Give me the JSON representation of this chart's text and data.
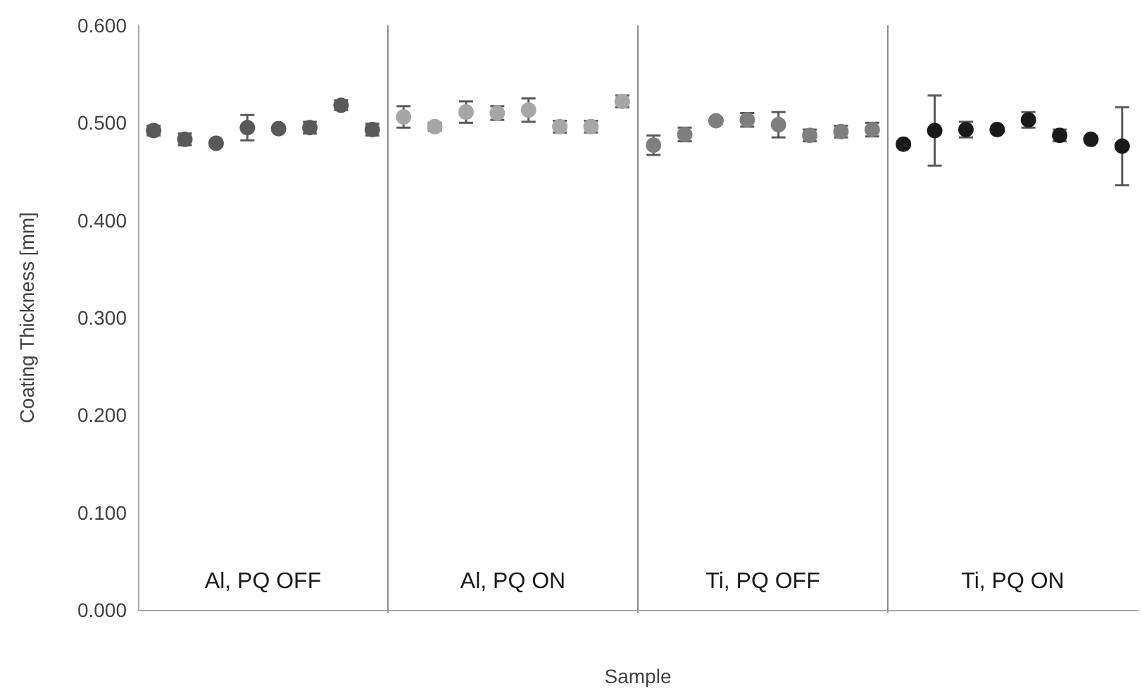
{
  "chart_data": {
    "type": "scatter",
    "xlabel": "Sample",
    "ylabel": "Coating Thickness [mm]",
    "categories": [
      null,
      null,
      null,
      null,
      null,
      null,
      null,
      null,
      null,
      null,
      null,
      null,
      null,
      null,
      null,
      null,
      null,
      null,
      null,
      null,
      null,
      null,
      null,
      null,
      null,
      null,
      null,
      null,
      null,
      null,
      null,
      null
    ],
    "series": [
      {
        "color": "#595959",
        "values": [
          0.492,
          0.483,
          0.479,
          0.495,
          0.494,
          0.495,
          0.518,
          0.493,
          null,
          null,
          null,
          null,
          null,
          null,
          null,
          null,
          null,
          null,
          null,
          null,
          null,
          null,
          null,
          null,
          null,
          null,
          null,
          null,
          null,
          null,
          null,
          null
        ],
        "errors": [
          0.005,
          0.006,
          0.003,
          0.013,
          0.002,
          0.006,
          0.005,
          0.006,
          null,
          null,
          null,
          null,
          null,
          null,
          null,
          null,
          null,
          null,
          null,
          null,
          null,
          null,
          null,
          null,
          null,
          null,
          null,
          null,
          null,
          null,
          null,
          null
        ]
      },
      {
        "color": "#a6a6a6",
        "values": [
          null,
          null,
          null,
          null,
          null,
          null,
          null,
          null,
          0.506,
          0.496,
          0.511,
          0.51,
          0.513,
          0.496,
          0.496,
          0.522,
          null,
          null,
          null,
          null,
          null,
          null,
          null,
          null,
          null,
          null,
          null,
          null,
          null,
          null,
          null,
          null
        ],
        "errors": [
          null,
          null,
          null,
          null,
          null,
          null,
          null,
          null,
          0.011,
          0.004,
          0.011,
          0.007,
          0.012,
          0.006,
          0.006,
          0.006,
          null,
          null,
          null,
          null,
          null,
          null,
          null,
          null,
          null,
          null,
          null,
          null,
          null,
          null,
          null,
          null
        ]
      },
      {
        "color": "#7f7f7f",
        "values": [
          null,
          null,
          null,
          null,
          null,
          null,
          null,
          null,
          null,
          null,
          null,
          null,
          null,
          null,
          null,
          null,
          0.477,
          0.488,
          0.502,
          0.503,
          0.498,
          0.487,
          0.491,
          0.493,
          null,
          null,
          null,
          null,
          null,
          null,
          null,
          null
        ],
        "errors": [
          null,
          null,
          null,
          null,
          null,
          null,
          null,
          null,
          null,
          null,
          null,
          null,
          null,
          null,
          null,
          null,
          0.01,
          0.007,
          0.003,
          0.007,
          0.013,
          0.006,
          0.006,
          0.007,
          null,
          null,
          null,
          null,
          null,
          null,
          null,
          null
        ]
      },
      {
        "color": "#1a1a1a",
        "values": [
          null,
          null,
          null,
          null,
          null,
          null,
          null,
          null,
          null,
          null,
          null,
          null,
          null,
          null,
          null,
          null,
          null,
          null,
          null,
          null,
          null,
          null,
          null,
          null,
          0.478,
          0.492,
          0.493,
          0.493,
          0.503,
          0.487,
          0.483,
          0.476
        ],
        "errors": [
          null,
          null,
          null,
          null,
          null,
          null,
          null,
          null,
          null,
          null,
          null,
          null,
          null,
          null,
          null,
          null,
          null,
          null,
          null,
          null,
          null,
          null,
          null,
          null,
          0.003,
          0.036,
          0.008,
          0.002,
          0.008,
          0.006,
          0.002,
          0.04
        ]
      }
    ],
    "annotations": [
      "Al, PQ OFF",
      "Al, PQ ON",
      "Ti, PQ OFF",
      "Ti, PQ ON"
    ],
    "ylim": [
      0,
      0.6
    ],
    "yticks": [
      {
        "value": 0,
        "label": "0.000"
      },
      {
        "value": 0.1,
        "label": "0.100"
      },
      {
        "value": 0.2,
        "label": "0.200"
      },
      {
        "value": 0.3,
        "label": "0.300"
      },
      {
        "value": 0.4,
        "label": "0.400"
      },
      {
        "value": 0.5,
        "label": "0.500"
      },
      {
        "value": 0.6,
        "label": "0.600"
      }
    ],
    "grid": false,
    "marker": "circle"
  }
}
